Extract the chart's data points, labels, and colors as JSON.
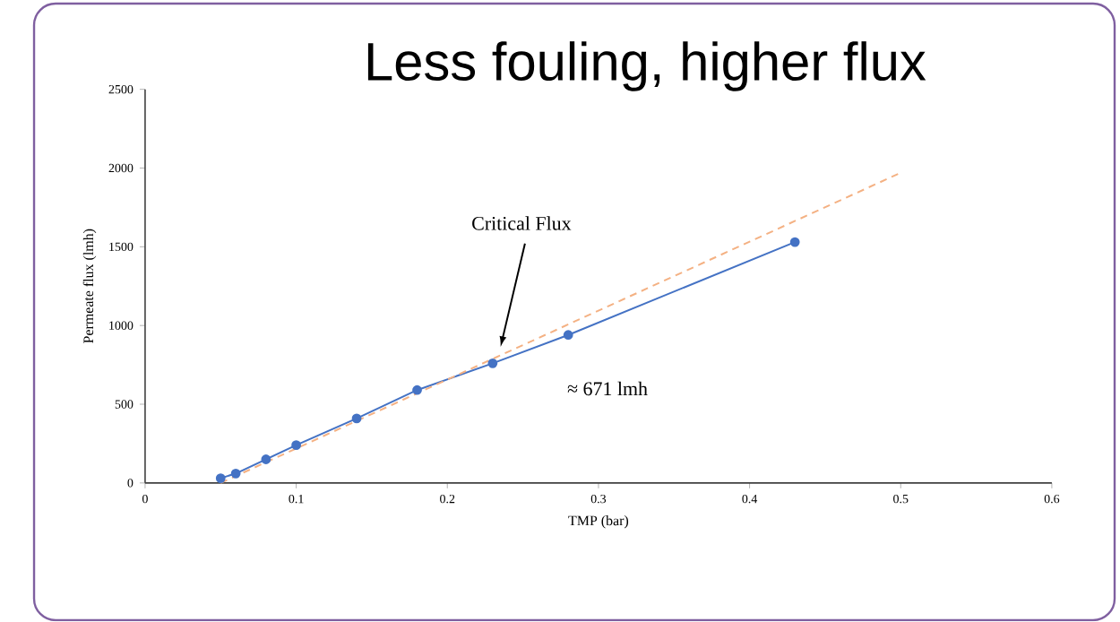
{
  "chart_data": {
    "type": "line",
    "title": "Less fouling, higher flux",
    "xlabel": "TMP (bar)",
    "ylabel": "Permeate flux (lmh)",
    "xlim": [
      0,
      0.6
    ],
    "xticks": [
      0,
      0.1,
      0.2,
      0.3,
      0.4,
      0.5,
      0.6
    ],
    "ylim": [
      0,
      2500
    ],
    "yticks": [
      0,
      500,
      1000,
      1500,
      2000,
      2500
    ],
    "grid": false,
    "series": [
      {
        "color": "#4472c4",
        "marker": "circle",
        "line_style": "solid",
        "x": [
          0.05,
          0.06,
          0.08,
          0.1,
          0.14,
          0.18,
          0.23,
          0.28,
          0.43
        ],
        "values": [
          30,
          60,
          150,
          240,
          410,
          590,
          760,
          940,
          1530
        ]
      },
      {
        "color": "#f4b183",
        "marker": "none",
        "line_style": "dashed",
        "x": [
          0.05,
          0.5
        ],
        "values": [
          0,
          1970
        ]
      }
    ],
    "annotations": [
      "Critical Flux",
      "≈ 671 lmh"
    ]
  }
}
